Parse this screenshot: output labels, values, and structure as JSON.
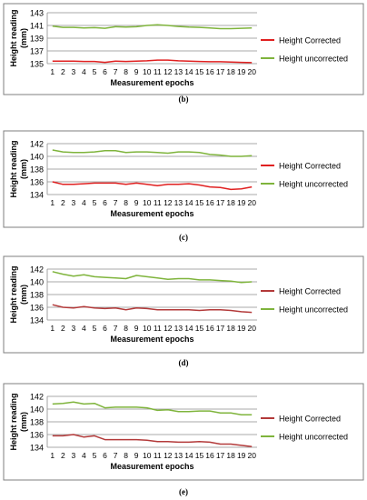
{
  "x_values": [
    1,
    2,
    3,
    4,
    5,
    6,
    7,
    8,
    9,
    10,
    11,
    12,
    13,
    14,
    15,
    16,
    17,
    18,
    19,
    20
  ],
  "chart_data": [
    {
      "type": "line",
      "caption": "(b)",
      "xlabel": "Measurement epochs",
      "ylabel": "Height reading (mm)",
      "ylim": [
        135,
        143
      ],
      "yticks": [
        135,
        137,
        139,
        141,
        143
      ],
      "grid": "horizontal",
      "legend": "right",
      "x": [
        1,
        2,
        3,
        4,
        5,
        6,
        7,
        8,
        9,
        10,
        11,
        12,
        13,
        14,
        15,
        16,
        17,
        18,
        19,
        20
      ],
      "series": [
        {
          "name": "Height Corrected",
          "color": "#e02020",
          "values": [
            135.4,
            135.4,
            135.4,
            135.35,
            135.35,
            135.2,
            135.4,
            135.35,
            135.4,
            135.45,
            135.55,
            135.55,
            135.45,
            135.4,
            135.35,
            135.3,
            135.3,
            135.25,
            135.2,
            135.15
          ]
        },
        {
          "name": "Height uncorrected",
          "color": "#7fb43c",
          "values": [
            140.9,
            140.7,
            140.7,
            140.6,
            140.65,
            140.55,
            140.8,
            140.75,
            140.8,
            141.0,
            141.1,
            141.0,
            140.85,
            140.75,
            140.7,
            140.6,
            140.5,
            140.5,
            140.55,
            140.6
          ]
        }
      ]
    },
    {
      "type": "line",
      "caption": "(c)",
      "xlabel": "Measurement epochs",
      "ylabel": "Height reading (mm)",
      "ylim": [
        134,
        142
      ],
      "yticks": [
        134,
        136,
        138,
        140,
        142
      ],
      "grid": "horizontal",
      "legend": "right",
      "x": [
        1,
        2,
        3,
        4,
        5,
        6,
        7,
        8,
        9,
        10,
        11,
        12,
        13,
        14,
        15,
        16,
        17,
        18,
        19,
        20
      ],
      "series": [
        {
          "name": "Height Corrected",
          "color": "#e02020",
          "values": [
            136.0,
            135.6,
            135.6,
            135.7,
            135.8,
            135.8,
            135.8,
            135.6,
            135.8,
            135.6,
            135.4,
            135.6,
            135.6,
            135.7,
            135.5,
            135.2,
            135.1,
            134.8,
            134.9,
            135.2
          ]
        },
        {
          "name": "Height uncorrected",
          "color": "#7fb43c",
          "values": [
            141.0,
            140.7,
            140.6,
            140.6,
            140.7,
            140.9,
            140.9,
            140.6,
            140.7,
            140.7,
            140.6,
            140.5,
            140.7,
            140.7,
            140.6,
            140.3,
            140.2,
            140.0,
            140.0,
            140.1
          ]
        }
      ]
    },
    {
      "type": "line",
      "caption": "(d)",
      "xlabel": "Measurement epochs",
      "ylabel": "Height reading (mm)",
      "ylim": [
        134,
        142
      ],
      "yticks": [
        134,
        136,
        138,
        140,
        142
      ],
      "grid": "horizontal",
      "legend": "right",
      "x": [
        1,
        2,
        3,
        4,
        5,
        6,
        7,
        8,
        9,
        10,
        11,
        12,
        13,
        14,
        15,
        16,
        17,
        18,
        19,
        20
      ],
      "series": [
        {
          "name": "Height Corrected",
          "color": "#b33a3a",
          "values": [
            136.4,
            136.0,
            135.9,
            136.1,
            135.9,
            135.8,
            135.9,
            135.6,
            135.9,
            135.8,
            135.6,
            135.6,
            135.6,
            135.6,
            135.5,
            135.6,
            135.6,
            135.5,
            135.3,
            135.2
          ]
        },
        {
          "name": "Height uncorrected",
          "color": "#7fb43c",
          "values": [
            141.6,
            141.2,
            140.9,
            141.1,
            140.8,
            140.7,
            140.6,
            140.5,
            141.0,
            140.8,
            140.6,
            140.4,
            140.5,
            140.5,
            140.3,
            140.3,
            140.2,
            140.1,
            139.9,
            140.0
          ]
        }
      ]
    },
    {
      "type": "line",
      "caption": "(e)",
      "xlabel": "Measurement epochs",
      "ylabel": "Height reading (mm)",
      "ylim": [
        134,
        142
      ],
      "yticks": [
        134,
        136,
        138,
        140,
        142
      ],
      "grid": "horizontal",
      "legend": "right",
      "x": [
        1,
        2,
        3,
        4,
        5,
        6,
        7,
        8,
        9,
        10,
        11,
        12,
        13,
        14,
        15,
        16,
        17,
        18,
        19,
        20
      ],
      "series": [
        {
          "name": "Height Corrected",
          "color": "#b33a3a",
          "values": [
            135.8,
            135.8,
            136.0,
            135.6,
            135.8,
            135.2,
            135.2,
            135.2,
            135.2,
            135.1,
            134.9,
            134.9,
            134.8,
            134.8,
            134.9,
            134.8,
            134.5,
            134.5,
            134.3,
            134.1
          ]
        },
        {
          "name": "Height uncorrected",
          "color": "#7fb43c",
          "values": [
            140.8,
            140.9,
            141.1,
            140.8,
            140.9,
            140.2,
            140.3,
            140.3,
            140.3,
            140.2,
            139.8,
            139.9,
            139.6,
            139.6,
            139.7,
            139.7,
            139.4,
            139.4,
            139.1,
            139.1
          ]
        }
      ]
    }
  ]
}
